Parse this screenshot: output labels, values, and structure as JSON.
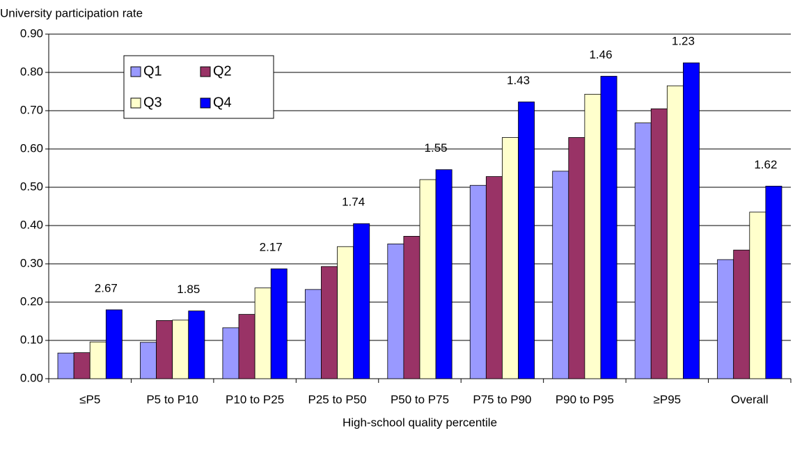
{
  "chart_data": {
    "type": "bar",
    "y_label": "University participation rate",
    "x_label": "High-school quality percentile",
    "categories": [
      "≤P5",
      "P5 to P10",
      "P10 to P25",
      "P25 to P50",
      "P50 to P75",
      "P75 to P90",
      "P90 to P95",
      "≥P95",
      "Overall"
    ],
    "series": [
      {
        "name": "Q1",
        "color": "#9999ff",
        "values": [
          0.067,
          0.095,
          0.133,
          0.233,
          0.352,
          0.505,
          0.542,
          0.668,
          0.311
        ]
      },
      {
        "name": "Q2",
        "color": "#993366",
        "values": [
          0.068,
          0.152,
          0.168,
          0.293,
          0.372,
          0.528,
          0.63,
          0.705,
          0.336
        ]
      },
      {
        "name": "Q3",
        "color": "#ffffcc",
        "values": [
          0.096,
          0.153,
          0.237,
          0.345,
          0.52,
          0.63,
          0.743,
          0.765,
          0.435
        ]
      },
      {
        "name": "Q4",
        "color": "#0000ff",
        "values": [
          0.18,
          0.177,
          0.287,
          0.405,
          0.546,
          0.723,
          0.79,
          0.825,
          0.503
        ]
      }
    ],
    "annotations": [
      "2.67",
      "1.85",
      "2.17",
      "1.74",
      "1.55",
      "1.43",
      "1.46",
      "1.23",
      "1.62"
    ],
    "ylim": [
      0,
      0.9
    ],
    "yticks": [
      {
        "value": 0,
        "label": "0.00"
      },
      {
        "value": 0.1,
        "label": "0.10"
      },
      {
        "value": 0.2,
        "label": "0.20"
      },
      {
        "value": 0.3,
        "label": "0.30"
      },
      {
        "value": 0.4,
        "label": "0.40"
      },
      {
        "value": 0.5,
        "label": "0.50"
      },
      {
        "value": 0.6,
        "label": "0.60"
      },
      {
        "value": 0.7,
        "label": "0.70"
      },
      {
        "value": 0.8,
        "label": "0.80"
      },
      {
        "value": 0.9,
        "label": "0.90"
      }
    ],
    "grid": true
  }
}
